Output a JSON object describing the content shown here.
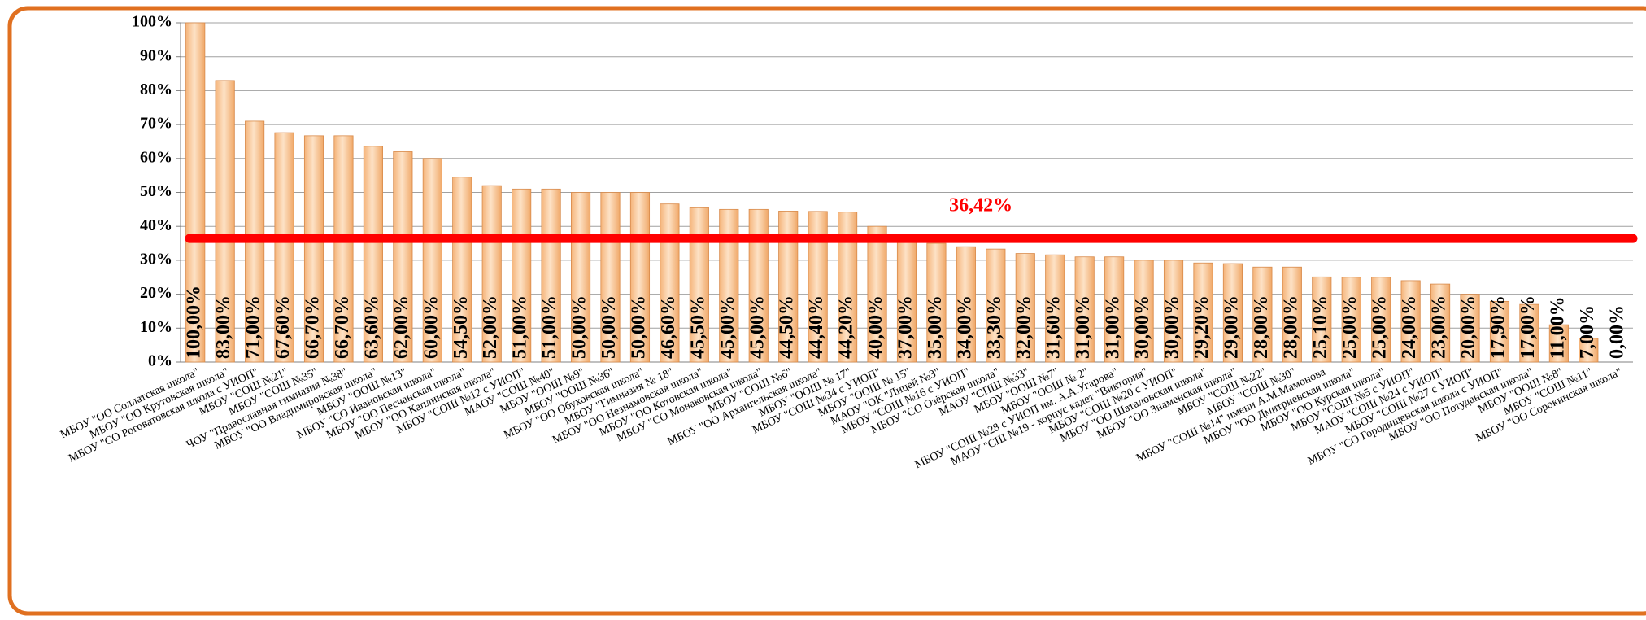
{
  "chart_data": {
    "type": "bar",
    "categories": [
      "МБОУ \"ОО Соллатская школа\"",
      "МБОУ \"ОО Крутовская школа\"",
      "МБОУ \"СО Роговатовская школа с УИОП\"",
      "МБОУ \"СОШ №21\"",
      "МБОУ \"СОШ №35\"",
      "ЧОУ \"Православная гимназия №38\"",
      "МБОУ \"ОО Владимировская школа\"",
      "МБОУ \"ООШ №13\"",
      "МБОУ \"СО Ивановская школа\"",
      "МБОУ \"ОО Песчанская школа\"",
      "МБОУ \"ОО Каплинская школа\"",
      "МБОУ \"СОШ №12 с УИОП\"",
      "МАОУ \"СОШ №40\"",
      "МБОУ \"ООШ №9\"",
      "МБОУ \"ООШ №36\"",
      "МБОУ \"ОО Обуховская школа\"",
      "МБОУ \"Гимназия № 18\"",
      "МБОУ \"ОО Незнамовская школа\"",
      "МБОУ \"ОО Котовская школа\"",
      "МБОУ \"СО Монаковская школа\"",
      "МБОУ \"СОШ №6\"",
      "МБОУ \"ОО Архангельская школа\"",
      "МБОУ \"ООШ № 17\"",
      "МБОУ \"СОШ №34 с УИОП\"",
      "МБОУ \"ООШ № 15\"",
      "МАОУ \"ОК \"Лицей №3\"",
      "МБОУ \"СОШ №16 с УИОП\"",
      "МБОУ \"СО Озёрская школа\"",
      "МАОУ \"СПШ №33\"",
      "МБОУ \"ООШ №7\"",
      "МБОУ \"ООШ № 2\"",
      "МБОУ \"СОШ №28 с УИОП им. А.А.Угарова\"",
      "МАОУ \"СШ №19 - корпус кадет \"Виктория\"",
      "МБОУ \"СОШ №20 с УИОП\"",
      "МБОУ \"ОО Шаталовская школа\"",
      "МБОУ \"ОО Знаменская школа\"",
      "МБОУ \"СОШ №22\"",
      "МБОУ \"СОШ №30\"",
      "МБОУ \"СОШ №14\" имени А.М.Мамонова",
      "МБОУ \"ОО Дмитриевская школа\"",
      "МБОУ \"ОО Курская школа\"",
      "МБОУ \"СОШ №5 с УИОП\"",
      "МАОУ \"СОШ №24 с УИОП\"",
      "МБОУ \"СОШ №27 с УИОП\"",
      "МБОУ \"СО Городищенская школа с УИОП\"",
      "МБОУ \"ОО Потуданская школа\"",
      "МБОУ \"ООШ №8\"",
      "МБОУ \"СОШ №11\"",
      "МБОУ \"ОО Сорокинская школа\""
    ],
    "values": [
      100,
      83,
      71,
      67.6,
      66.7,
      66.7,
      63.6,
      62,
      60,
      54.5,
      52,
      51,
      51,
      50,
      50,
      50,
      46.6,
      45.5,
      45,
      45,
      44.5,
      44.4,
      44.2,
      40,
      37,
      35,
      34,
      33.3,
      32,
      31.6,
      31,
      31,
      30,
      30,
      29.2,
      29,
      28,
      28,
      25.1,
      25,
      25,
      24,
      23,
      20,
      17.9,
      17,
      11,
      7,
      0
    ],
    "value_labels": [
      "100,00%",
      "83,00%",
      "71,00%",
      "67,60%",
      "66,70%",
      "66,70%",
      "63,60%",
      "62,00%",
      "60,00%",
      "54,50%",
      "52,00%",
      "51,00%",
      "51,00%",
      "50,00%",
      "50,00%",
      "50,00%",
      "46,60%",
      "45,50%",
      "45,00%",
      "45,00%",
      "44,50%",
      "44,40%",
      "44,20%",
      "40,00%",
      "37,00%",
      "35,00%",
      "34,00%",
      "33,30%",
      "32,00%",
      "31,60%",
      "31,00%",
      "31,00%",
      "30,00%",
      "30,00%",
      "29,20%",
      "29,00%",
      "28,00%",
      "28,00%",
      "25,10%",
      "25,00%",
      "25,00%",
      "24,00%",
      "23,00%",
      "20,00%",
      "17,90%",
      "17,00%",
      "11,00%",
      "7,00%",
      "0,00%"
    ],
    "color": "#f7c08c",
    "ylim": [
      0,
      100
    ],
    "yticks": [
      {
        "value": 0,
        "label": "0%"
      },
      {
        "value": 10,
        "label": "10%"
      },
      {
        "value": 20,
        "label": "20%"
      },
      {
        "value": 30,
        "label": "30%"
      },
      {
        "value": 40,
        "label": "40%"
      },
      {
        "value": 50,
        "label": "50%"
      },
      {
        "value": 60,
        "label": "60%"
      },
      {
        "value": 70,
        "label": "70%"
      },
      {
        "value": 80,
        "label": "80%"
      },
      {
        "value": 90,
        "label": "90%"
      },
      {
        "value": 100,
        "label": "100%"
      }
    ],
    "grid": true,
    "reference_line": {
      "value": 36.42,
      "label": "36,42%",
      "color": "#ff0000"
    }
  }
}
